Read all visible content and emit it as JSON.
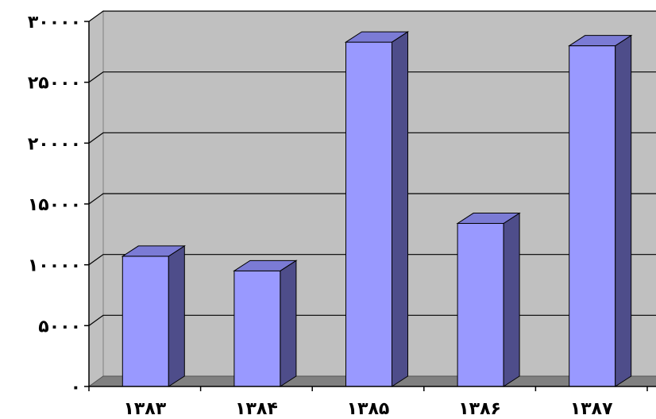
{
  "chart_data": {
    "type": "bar",
    "style": "3d-clustered-column",
    "categories": [
      "۱۳۸۳",
      "۱۳۸۴",
      "۱۳۸۵",
      "۱۳۸۶",
      "۱۳۸۷"
    ],
    "values": [
      10700,
      9500,
      28300,
      13400,
      28000
    ],
    "y_tick_labels": [
      "۰",
      "۵۰۰۰",
      "۱۰۰۰۰",
      "۱۵۰۰۰",
      "۲۰۰۰۰",
      "۲۵۰۰۰",
      "۳۰۰۰۰"
    ],
    "y_ticks": [
      0,
      5000,
      10000,
      15000,
      20000,
      25000,
      30000
    ],
    "ylim": [
      0,
      30000
    ],
    "title": "",
    "xlabel": "",
    "ylabel": "",
    "grid": true,
    "legend": "none",
    "colors": {
      "bar_front": "#9999ff",
      "bar_top": "#7b7bd5",
      "bar_side": "#4e4d8a",
      "wall": "#c0c0c0",
      "floor": "#808080",
      "gridline": "#000000"
    }
  }
}
